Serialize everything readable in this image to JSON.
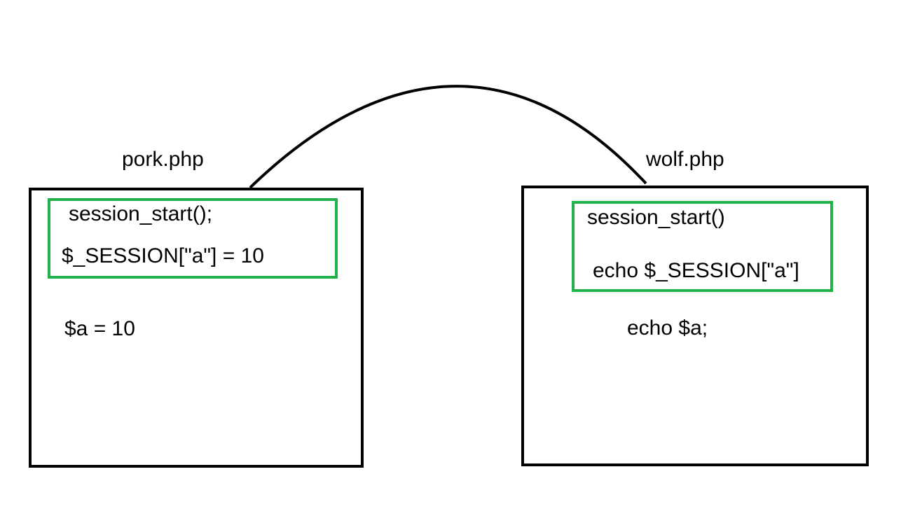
{
  "diagram": {
    "colors": {
      "outline": "#000000",
      "session_highlight": "#22b14c",
      "background": "#ffffff"
    },
    "left_file": {
      "name": "pork.php",
      "session_lines": [
        "session_start();",
        "$_SESSION[\"a\"] = 10"
      ],
      "local_line": "$a = 10"
    },
    "right_file": {
      "name": "wolf.php",
      "session_lines": [
        "session_start()",
        "echo $_SESSION[\"a\"]"
      ],
      "local_line": "echo $a;"
    }
  }
}
